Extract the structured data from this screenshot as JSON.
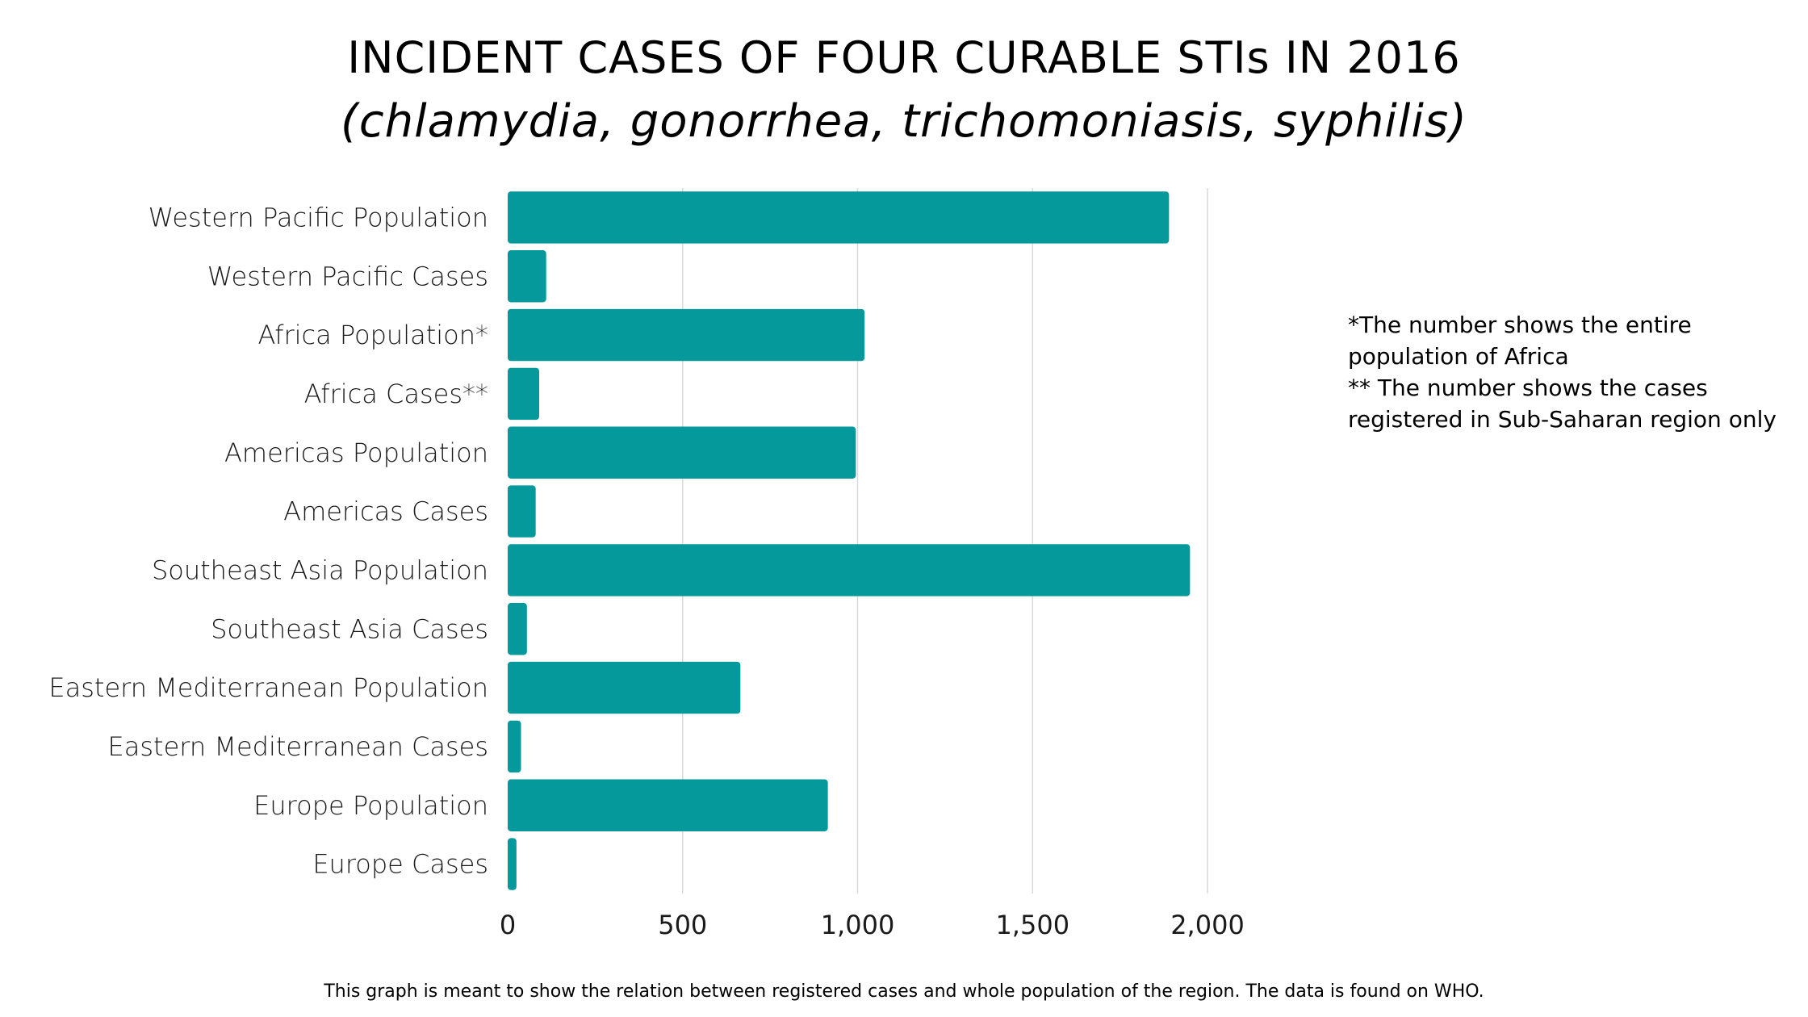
{
  "title": "INCIDENT CASES OF FOUR CURABLE STIs IN 2016",
  "subtitle": "(chlamydia, gonorrhea, trichomoniasis, syphilis)",
  "notes": [
    "*The number  shows the entire",
    "population of Africa",
    "** The number shows the cases",
    "registered in Sub-Saharan region only"
  ],
  "caption": "This graph is meant to show the relation between registered cases and whole population of the region. The data is found on WHO.",
  "colors": {
    "bar": "#05999b",
    "grid": "#d9d9d9"
  },
  "chart_data": {
    "type": "bar",
    "orientation": "horizontal",
    "categories": [
      "Western Pacific Population",
      "Western Pacific Cases",
      "Africa Population*",
      "Africa Cases**",
      "Americas Population",
      "Americas Cases",
      "Southeast Asia Population",
      "Southeast Asia Cases",
      "Eastern Mediterranean Population",
      "Eastern Mediterranean Cases",
      "Europe Population",
      "Europe Cases"
    ],
    "values": [
      1890,
      110,
      1020,
      90,
      995,
      80,
      1950,
      55,
      665,
      38,
      915,
      25
    ],
    "xlim": [
      0,
      2000
    ],
    "xticks": [
      0,
      500,
      1000,
      1500,
      2000
    ],
    "xtick_labels": [
      "0",
      "500",
      "1,000",
      "1,500",
      "2,000"
    ],
    "grid": true,
    "legend": "none"
  }
}
